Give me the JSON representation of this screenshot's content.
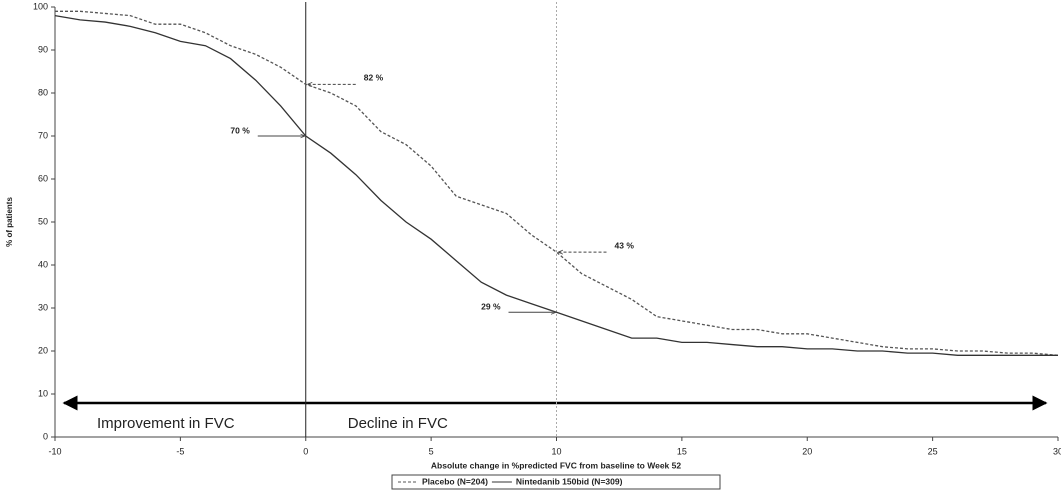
{
  "chart_data": {
    "type": "line",
    "y_label": "% of patients",
    "x_label": "Absolute change in %predicted FVC from baseline to Week 52",
    "x": [
      -10,
      -9,
      -8,
      -7,
      -6,
      -5,
      -4,
      -3,
      -2,
      -1,
      0,
      1,
      2,
      3,
      4,
      5,
      6,
      7,
      8,
      9,
      10,
      11,
      12,
      13,
      14,
      15,
      16,
      17,
      18,
      19,
      20,
      21,
      22,
      23,
      24,
      25,
      26,
      27,
      28,
      29,
      30
    ],
    "series": [
      {
        "name": "Placebo (N=204)",
        "color": "#555555",
        "dash": "dashed",
        "values": [
          99,
          99,
          98.5,
          98,
          96,
          96,
          94,
          91,
          89,
          86,
          82,
          80,
          77,
          71,
          68,
          63,
          56,
          54,
          52,
          47,
          43,
          38,
          35,
          32,
          28,
          27,
          26,
          25,
          25,
          24,
          24,
          23,
          22,
          21,
          20.5,
          20.5,
          20,
          20,
          19.5,
          19.5,
          19
        ]
      },
      {
        "name": "Nintedanib 150bid (N=309)",
        "color": "#333333",
        "dash": "solid",
        "values": [
          98,
          97,
          96.5,
          95.5,
          94,
          92,
          91,
          88,
          83,
          77,
          70,
          66,
          61,
          55,
          50,
          46,
          41,
          36,
          33,
          31,
          29,
          27,
          25,
          23,
          23,
          22,
          22,
          21.5,
          21,
          21,
          20.5,
          20.5,
          20,
          20,
          19.5,
          19.5,
          19,
          19,
          19,
          19,
          19
        ]
      }
    ],
    "annotations": [
      {
        "label": "82 %",
        "x": 0,
        "y": 82,
        "series": 0
      },
      {
        "label": "70 %",
        "x": 0,
        "y": 70,
        "series": 1
      },
      {
        "label": "43 %",
        "x": 10,
        "y": 43,
        "series": 0
      },
      {
        "label": "29 %",
        "x": 10,
        "y": 29,
        "series": 1
      }
    ],
    "region_labels": [
      {
        "label": "Improvement in FVC",
        "x": -10
      },
      {
        "label": "Decline in FVC",
        "x": 0
      }
    ],
    "reference_lines": [
      0,
      10
    ],
    "xlim": [
      -10,
      30
    ],
    "xticks": [
      -10,
      -5,
      0,
      5,
      10,
      15,
      20,
      25,
      30
    ],
    "ylim": [
      0,
      100
    ],
    "yticks": [
      0,
      10,
      20,
      30,
      40,
      50,
      60,
      70,
      80,
      90,
      100
    ]
  }
}
